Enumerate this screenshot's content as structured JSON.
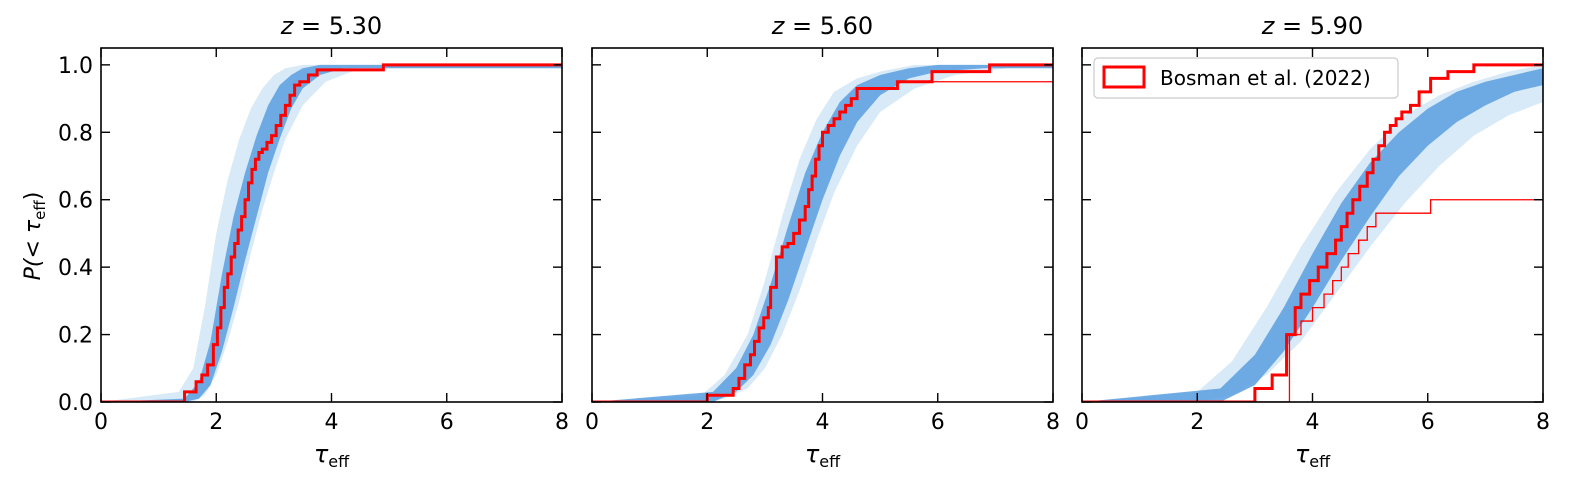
{
  "figure": {
    "ylabel_main": "P(< τ",
    "ylabel_sub": "eff",
    "ylabel_close": ")",
    "xlabel_main": "τ",
    "xlabel_sub": "eff",
    "legend_label": "Bosman et al. (2022)"
  },
  "colors": {
    "model_band": "#5a9fe0",
    "model_band_faint": "#b8d8f0",
    "observed": "#ff0000",
    "axis": "#000000"
  },
  "chart_data": [
    {
      "type": "line",
      "title": "z = 5.30",
      "title_var": "z",
      "title_value": "5.30",
      "xlabel": "τ_eff",
      "ylabel": "P(< τ_eff)",
      "xlim": [
        0,
        8
      ],
      "ylim": [
        0,
        1.05
      ],
      "xticks": [
        0,
        2,
        4,
        6,
        8
      ],
      "yticks": [
        0.0,
        0.2,
        0.4,
        0.6,
        0.8,
        1.0
      ],
      "ytick_labels": [
        "0.0",
        "0.2",
        "0.4",
        "0.6",
        "0.8",
        "1.0"
      ],
      "band_core": {
        "x": [
          1.45,
          1.7,
          1.9,
          2.1,
          2.3,
          2.5,
          2.7,
          2.9,
          3.1,
          3.3,
          3.5,
          3.8,
          4.2
        ],
        "lo": [
          0.0,
          0.01,
          0.05,
          0.15,
          0.28,
          0.42,
          0.55,
          0.68,
          0.78,
          0.87,
          0.93,
          0.97,
          0.99
        ],
        "hi": [
          0.01,
          0.06,
          0.18,
          0.38,
          0.55,
          0.68,
          0.79,
          0.88,
          0.94,
          0.97,
          0.99,
          1.0,
          1.0
        ]
      },
      "band_outer": {
        "x": [
          1.35,
          1.6,
          1.8,
          2.0,
          2.2,
          2.4,
          2.6,
          2.8,
          3.0,
          3.2,
          3.5,
          3.9,
          4.5
        ],
        "lo": [
          0.0,
          0.0,
          0.02,
          0.08,
          0.18,
          0.3,
          0.44,
          0.57,
          0.68,
          0.78,
          0.88,
          0.95,
          0.99
        ],
        "hi": [
          0.03,
          0.1,
          0.28,
          0.5,
          0.66,
          0.78,
          0.87,
          0.93,
          0.97,
          0.99,
          1.0,
          1.0,
          1.0
        ]
      },
      "observed_full": {
        "x": [
          0,
          1.45,
          1.65,
          1.75,
          1.85,
          1.95,
          2.02,
          2.08,
          2.14,
          2.2,
          2.26,
          2.32,
          2.38,
          2.44,
          2.5,
          2.56,
          2.62,
          2.68,
          2.74,
          2.8,
          2.88,
          2.96,
          3.04,
          3.12,
          3.2,
          3.28,
          3.36,
          3.45,
          3.6,
          3.75,
          4.9,
          8
        ],
        "y": [
          0,
          0.03,
          0.06,
          0.08,
          0.11,
          0.17,
          0.22,
          0.28,
          0.34,
          0.38,
          0.43,
          0.47,
          0.51,
          0.55,
          0.6,
          0.65,
          0.69,
          0.72,
          0.74,
          0.75,
          0.77,
          0.79,
          0.82,
          0.85,
          0.88,
          0.91,
          0.94,
          0.95,
          0.97,
          0.985,
          1.0,
          1.0
        ]
      }
    },
    {
      "type": "line",
      "title": "z = 5.60",
      "title_var": "z",
      "title_value": "5.60",
      "xlabel": "τ_eff",
      "xlim": [
        0,
        8
      ],
      "ylim": [
        0,
        1.05
      ],
      "xticks": [
        0,
        2,
        4,
        6,
        8
      ],
      "yticks": [
        0.0,
        0.2,
        0.4,
        0.6,
        0.8,
        1.0
      ],
      "band_core": {
        "x": [
          2.1,
          2.5,
          2.8,
          3.1,
          3.4,
          3.7,
          4.0,
          4.3,
          4.6,
          5.0,
          5.5,
          6.0,
          6.8
        ],
        "lo": [
          0.0,
          0.03,
          0.08,
          0.17,
          0.3,
          0.45,
          0.6,
          0.73,
          0.83,
          0.91,
          0.96,
          0.98,
          0.99
        ],
        "hi": [
          0.03,
          0.1,
          0.2,
          0.35,
          0.52,
          0.68,
          0.8,
          0.89,
          0.94,
          0.97,
          0.99,
          1.0,
          1.0
        ]
      },
      "band_outer": {
        "x": [
          1.9,
          2.3,
          2.7,
          3.0,
          3.3,
          3.6,
          3.9,
          4.2,
          4.6,
          5.0,
          5.6,
          6.3,
          7.2
        ],
        "lo": [
          0.0,
          0.01,
          0.04,
          0.1,
          0.2,
          0.33,
          0.48,
          0.62,
          0.76,
          0.86,
          0.93,
          0.97,
          0.99
        ],
        "hi": [
          0.02,
          0.08,
          0.2,
          0.36,
          0.55,
          0.72,
          0.84,
          0.92,
          0.96,
          0.98,
          1.0,
          1.0,
          1.0
        ]
      },
      "observed_full": {
        "x": [
          0,
          2.0,
          2.45,
          2.55,
          2.65,
          2.75,
          2.82,
          2.9,
          2.98,
          3.06,
          3.1,
          3.2,
          3.3,
          3.4,
          3.5,
          3.6,
          3.7,
          3.76,
          3.82,
          3.88,
          3.94,
          4.0,
          4.1,
          4.2,
          4.3,
          4.4,
          4.5,
          4.6,
          5.3,
          5.9,
          6.9,
          8
        ],
        "y": [
          0,
          0.02,
          0.04,
          0.07,
          0.11,
          0.14,
          0.18,
          0.22,
          0.25,
          0.28,
          0.34,
          0.43,
          0.46,
          0.47,
          0.5,
          0.54,
          0.58,
          0.63,
          0.67,
          0.72,
          0.76,
          0.8,
          0.82,
          0.84,
          0.86,
          0.88,
          0.9,
          0.93,
          0.95,
          0.98,
          1.0,
          1.0
        ]
      },
      "observed_partial": {
        "x": [
          5.9,
          8
        ],
        "y": [
          0.95,
          0.95
        ]
      }
    },
    {
      "type": "line",
      "title": "z = 5.90",
      "title_var": "z",
      "title_value": "5.90",
      "xlabel": "τ_eff",
      "xlim": [
        0,
        8
      ],
      "ylim": [
        0,
        1.05
      ],
      "xticks": [
        0,
        2,
        4,
        6,
        8
      ],
      "yticks": [
        0.0,
        0.2,
        0.4,
        0.6,
        0.8,
        1.0
      ],
      "legend": "top-left",
      "band_core": {
        "x": [
          2.4,
          3.0,
          3.5,
          4.0,
          4.5,
          5.0,
          5.5,
          6.0,
          6.5,
          7.0,
          7.5,
          8.0
        ],
        "lo": [
          0.0,
          0.05,
          0.15,
          0.28,
          0.42,
          0.55,
          0.67,
          0.76,
          0.83,
          0.88,
          0.92,
          0.94
        ],
        "hi": [
          0.04,
          0.14,
          0.28,
          0.44,
          0.59,
          0.71,
          0.8,
          0.87,
          0.92,
          0.95,
          0.97,
          0.99
        ]
      },
      "band_outer": {
        "x": [
          2.0,
          2.6,
          3.2,
          3.8,
          4.4,
          5.0,
          5.6,
          6.2,
          6.8,
          7.4,
          8.0
        ],
        "lo": [
          0.0,
          0.02,
          0.08,
          0.18,
          0.32,
          0.46,
          0.59,
          0.7,
          0.79,
          0.85,
          0.89
        ],
        "hi": [
          0.03,
          0.12,
          0.28,
          0.46,
          0.62,
          0.75,
          0.85,
          0.91,
          0.95,
          0.98,
          1.0
        ]
      },
      "observed_full": {
        "x": [
          0,
          3.0,
          3.3,
          3.55,
          3.7,
          3.8,
          3.95,
          4.1,
          4.25,
          4.4,
          4.5,
          4.6,
          4.7,
          4.82,
          4.95,
          5.05,
          5.15,
          5.25,
          5.35,
          5.45,
          5.55,
          5.7,
          5.85,
          6.05,
          6.35,
          6.8,
          8
        ],
        "y": [
          0,
          0.04,
          0.08,
          0.2,
          0.28,
          0.32,
          0.36,
          0.4,
          0.44,
          0.48,
          0.52,
          0.56,
          0.6,
          0.64,
          0.68,
          0.72,
          0.76,
          0.8,
          0.82,
          0.84,
          0.86,
          0.88,
          0.92,
          0.96,
          0.98,
          1.0,
          1.0
        ]
      },
      "observed_partial": {
        "x": [
          0,
          3.6,
          3.8,
          4.0,
          4.2,
          4.35,
          4.5,
          4.62,
          4.8,
          4.95,
          5.1,
          5.35,
          6.05,
          8
        ],
        "y": [
          0,
          0.2,
          0.24,
          0.28,
          0.32,
          0.36,
          0.4,
          0.44,
          0.48,
          0.52,
          0.56,
          0.56,
          0.6,
          0.6
        ]
      }
    }
  ]
}
